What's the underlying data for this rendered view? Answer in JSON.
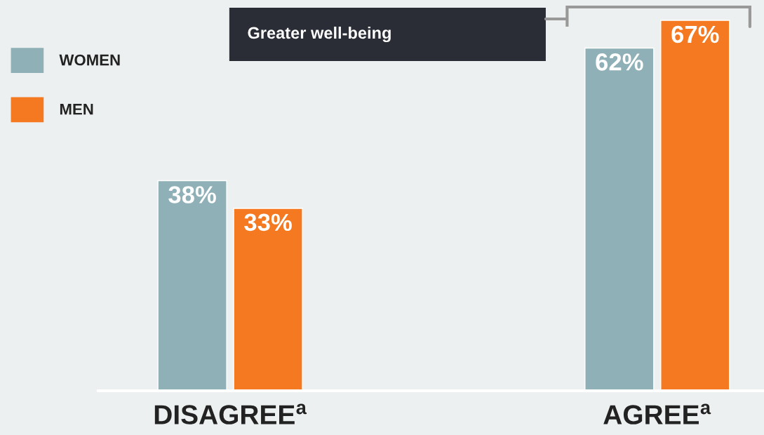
{
  "chart_data": {
    "type": "bar",
    "categories": [
      "DISAGREE$^{a}$",
      "AGREE$^{a}$"
    ],
    "series": [
      {
        "name": "WOMEN",
        "color": "#8eb0b6",
        "values": [
          38,
          62
        ],
        "value_labels": [
          "38%",
          "62%"
        ]
      },
      {
        "name": "MEN",
        "color": "#f47920",
        "values": [
          33,
          67
        ],
        "value_labels": [
          "33%",
          "67%"
        ]
      }
    ],
    "annotations": [
      "Greater well-being"
    ],
    "legend": "top left",
    "grid": false
  }
}
